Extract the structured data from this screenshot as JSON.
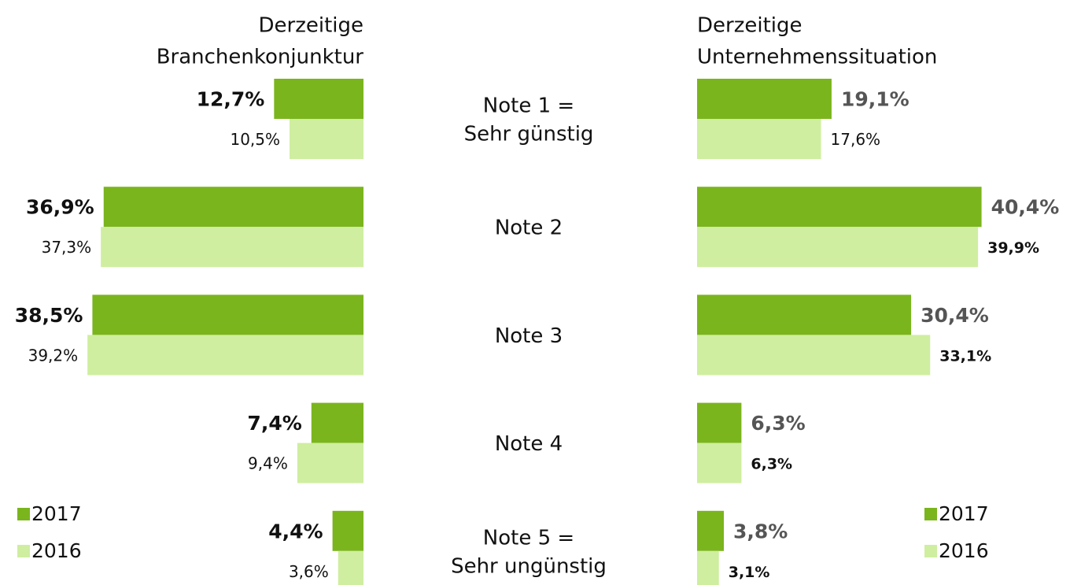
{
  "chart_data": [
    {
      "type": "bar",
      "orientation": "left",
      "title": [
        "Derzeitige",
        "Branchenkonjunktur"
      ],
      "categories": [
        [
          "Note 1 =",
          "Sehr günstig"
        ],
        [
          "Note 2"
        ],
        [
          "Note 3"
        ],
        [
          "Note 4"
        ],
        [
          "Note 5 =",
          "Sehr ungünstig"
        ]
      ],
      "series": [
        {
          "name": "2017",
          "color": "#7ab51d",
          "values": [
            12.7,
            36.9,
            38.5,
            7.4,
            4.4
          ],
          "value_labels": [
            "12,7%",
            "36,9%",
            "38,5%",
            "7,4%",
            "4,4%"
          ]
        },
        {
          "name": "2016",
          "color": "#cfeea0",
          "values": [
            10.5,
            37.3,
            39.2,
            9.4,
            3.6
          ],
          "value_labels": [
            "10,5%",
            "37,3%",
            "39,2%",
            "9,4%",
            "3,6%"
          ]
        }
      ]
    },
    {
      "type": "bar",
      "orientation": "right",
      "title": [
        "Derzeitige",
        "Unternehmenssituation"
      ],
      "series": [
        {
          "name": "2017",
          "color": "#7ab51d",
          "values": [
            19.1,
            40.4,
            30.4,
            6.3,
            3.8
          ],
          "value_labels": [
            "19,1%",
            "40,4%",
            "30,4%",
            "6,3%",
            "3,8%"
          ]
        },
        {
          "name": "2016",
          "color": "#cfeea0",
          "values": [
            17.6,
            39.9,
            33.1,
            6.3,
            3.1
          ],
          "value_labels": [
            "17,6%",
            "39,9%",
            "33,1%",
            "6,3%",
            "3,1%"
          ]
        }
      ]
    }
  ]
}
